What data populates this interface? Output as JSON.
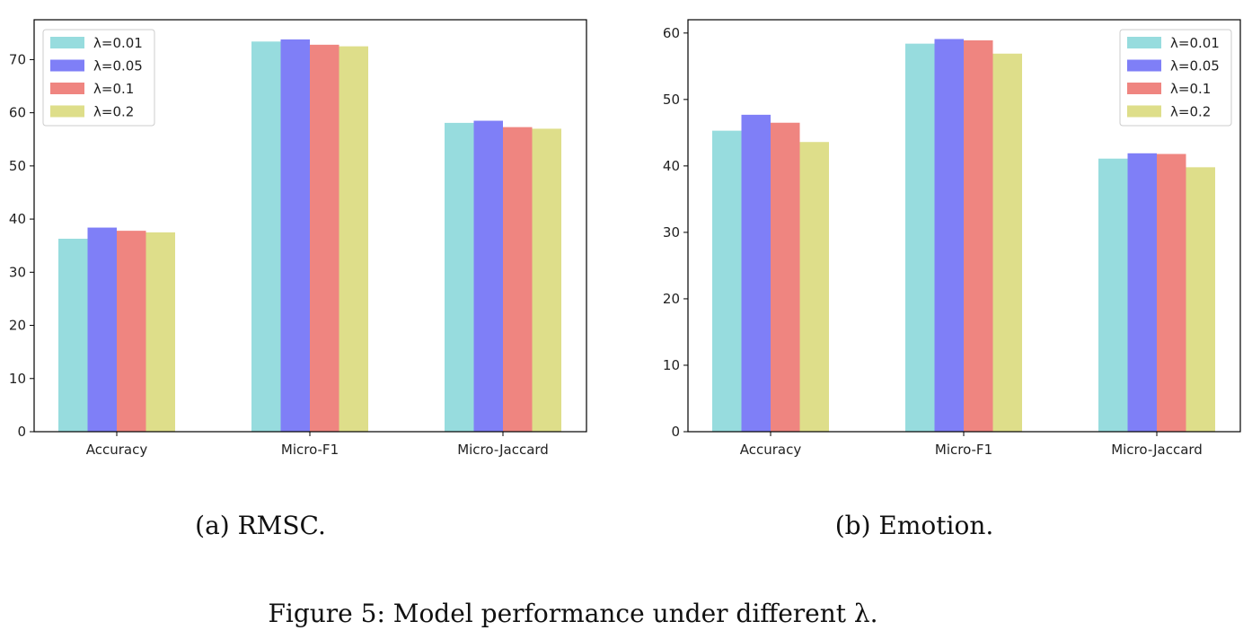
{
  "colors": {
    "l001": "#97DCDE",
    "l005": "#7F7FF7",
    "l01": "#EF8580",
    "l02": "#DEDE8A",
    "axis": "#000000"
  },
  "chart_data": [
    {
      "type": "bar",
      "categories": [
        "Accuracy",
        "Micro-F1",
        "Micro-Jaccard"
      ],
      "series": [
        {
          "name": "λ=0.01",
          "values": [
            36.3,
            73.4,
            58.1
          ]
        },
        {
          "name": "λ=0.05",
          "values": [
            38.4,
            73.8,
            58.5
          ]
        },
        {
          "name": "λ=0.1",
          "values": [
            37.8,
            72.8,
            57.3
          ]
        },
        {
          "name": "λ=0.2",
          "values": [
            37.5,
            72.5,
            57.0
          ]
        }
      ],
      "yticks": [
        0,
        10,
        20,
        30,
        40,
        50,
        60,
        70
      ],
      "ylim": [
        0,
        77.5
      ],
      "legend": "top-left",
      "grid": false,
      "caption": "(a) RMSC."
    },
    {
      "type": "bar",
      "categories": [
        "Accuracy",
        "Micro-F1",
        "Micro-Jaccard"
      ],
      "series": [
        {
          "name": "λ=0.01",
          "values": [
            45.3,
            58.4,
            41.1
          ]
        },
        {
          "name": "λ=0.05",
          "values": [
            47.7,
            59.1,
            41.9
          ]
        },
        {
          "name": "λ=0.1",
          "values": [
            46.5,
            58.9,
            41.8
          ]
        },
        {
          "name": "λ=0.2",
          "values": [
            43.6,
            56.9,
            39.8
          ]
        }
      ],
      "yticks": [
        0,
        10,
        20,
        30,
        40,
        50,
        60
      ],
      "ylim": [
        0,
        62
      ],
      "legend": "top-right",
      "grid": false,
      "caption": "(b) Emotion."
    }
  ],
  "figure_caption": "Figure 5: Model performance under different λ."
}
